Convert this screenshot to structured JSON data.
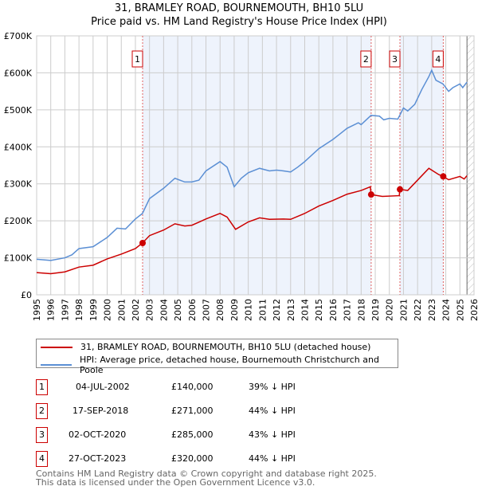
{
  "chart_data": {
    "type": "line",
    "title": "31, BRAMLEY ROAD, BOURNEMOUTH, BH10 5LU",
    "subtitle": "Price paid vs. HM Land Registry's House Price Index (HPI)",
    "xlim": [
      1995,
      2026
    ],
    "ylim": [
      0,
      700000
    ],
    "y_ticks": [
      {
        "v": 0,
        "label": "£0"
      },
      {
        "v": 100000,
        "label": "£100K"
      },
      {
        "v": 200000,
        "label": "£200K"
      },
      {
        "v": 300000,
        "label": "£300K"
      },
      {
        "v": 400000,
        "label": "£400K"
      },
      {
        "v": 500000,
        "label": "£500K"
      },
      {
        "v": 600000,
        "label": "£600K"
      },
      {
        "v": 700000,
        "label": "£700K"
      }
    ],
    "x_ticks": [
      "1995",
      "1996",
      "1997",
      "1998",
      "1999",
      "2000",
      "2001",
      "2002",
      "2003",
      "2004",
      "2005",
      "2006",
      "2007",
      "2008",
      "2009",
      "2010",
      "2011",
      "2012",
      "2013",
      "2014",
      "2015",
      "2016",
      "2017",
      "2018",
      "2019",
      "2020",
      "2021",
      "2022",
      "2023",
      "2024",
      "2025",
      "2026"
    ],
    "series": [
      {
        "name": "31, BRAMLEY ROAD, BOURNEMOUTH, BH10 5LU (detached house)",
        "color": "#cc0000",
        "points": [
          [
            1995,
            60
          ],
          [
            1996,
            57
          ],
          [
            1997,
            62
          ],
          [
            1998,
            75
          ],
          [
            1999,
            80
          ],
          [
            2000,
            97
          ],
          [
            2001,
            110
          ],
          [
            2002,
            125
          ],
          [
            2002.5,
            140
          ],
          [
            2003,
            160
          ],
          [
            2004,
            175
          ],
          [
            2004.8,
            192
          ],
          [
            2005.5,
            186
          ],
          [
            2006,
            188
          ],
          [
            2007,
            205
          ],
          [
            2008,
            220
          ],
          [
            2008.5,
            210
          ],
          [
            2009.1,
            177
          ],
          [
            2010,
            197
          ],
          [
            2010.8,
            208
          ],
          [
            2011.5,
            204
          ],
          [
            2012.5,
            205
          ],
          [
            2013,
            204
          ],
          [
            2014,
            220
          ],
          [
            2015,
            240
          ],
          [
            2016,
            255
          ],
          [
            2017,
            272
          ],
          [
            2018,
            282
          ],
          [
            2018.65,
            292
          ],
          [
            2018.71,
            271
          ],
          [
            2019.5,
            266
          ],
          [
            2020.7,
            268
          ],
          [
            2020.75,
            285
          ],
          [
            2021.3,
            282
          ],
          [
            2022,
            310
          ],
          [
            2022.8,
            342
          ],
          [
            2023.5,
            325
          ],
          [
            2023.82,
            320
          ],
          [
            2024.2,
            311
          ],
          [
            2025,
            320
          ],
          [
            2025.3,
            313
          ],
          [
            2025.5,
            322
          ]
        ]
      },
      {
        "name": "HPI: Average price, detached house, Bournemouth Christchurch and Poole",
        "color": "#5b8fd4",
        "points": [
          [
            1995,
            96
          ],
          [
            1996,
            93
          ],
          [
            1997,
            100
          ],
          [
            1997.5,
            108
          ],
          [
            1998,
            125
          ],
          [
            1999,
            130
          ],
          [
            2000,
            155
          ],
          [
            2000.7,
            180
          ],
          [
            2001.3,
            178
          ],
          [
            2002,
            205
          ],
          [
            2002.5,
            220
          ],
          [
            2003,
            260
          ],
          [
            2004,
            288
          ],
          [
            2004.8,
            315
          ],
          [
            2005.5,
            305
          ],
          [
            2006,
            305
          ],
          [
            2006.5,
            310
          ],
          [
            2007,
            335
          ],
          [
            2008,
            360
          ],
          [
            2008.5,
            345
          ],
          [
            2009,
            292
          ],
          [
            2009.5,
            315
          ],
          [
            2010,
            330
          ],
          [
            2010.8,
            342
          ],
          [
            2011.5,
            335
          ],
          [
            2012,
            337
          ],
          [
            2012.5,
            335
          ],
          [
            2013,
            332
          ],
          [
            2013.5,
            345
          ],
          [
            2014,
            360
          ],
          [
            2015,
            395
          ],
          [
            2016,
            420
          ],
          [
            2016.5,
            435
          ],
          [
            2017,
            450
          ],
          [
            2017.8,
            465
          ],
          [
            2018,
            460
          ],
          [
            2018.7,
            485
          ],
          [
            2019.3,
            483
          ],
          [
            2019.6,
            473
          ],
          [
            2020,
            477
          ],
          [
            2020.6,
            475
          ],
          [
            2021,
            505
          ],
          [
            2021.3,
            497
          ],
          [
            2021.8,
            515
          ],
          [
            2022.3,
            555
          ],
          [
            2022.8,
            590
          ],
          [
            2023,
            607
          ],
          [
            2023.3,
            580
          ],
          [
            2023.8,
            570
          ],
          [
            2024.2,
            550
          ],
          [
            2024.5,
            560
          ],
          [
            2025,
            570
          ],
          [
            2025.2,
            560
          ],
          [
            2025.5,
            575
          ]
        ]
      }
    ],
    "y_units": 1000,
    "sales": [
      {
        "label": "1",
        "x": 2002.51,
        "y": 140000
      },
      {
        "label": "2",
        "x": 2018.71,
        "y": 271000
      },
      {
        "label": "3",
        "x": 2020.75,
        "y": 285000
      },
      {
        "label": "4",
        "x": 2023.82,
        "y": 320000
      }
    ],
    "shaded_ranges": [
      [
        2002.51,
        2018.71
      ],
      [
        2020.75,
        2023.82
      ]
    ],
    "forecast_hatch_from": 2025.5
  },
  "legend": {
    "items": [
      "31, BRAMLEY ROAD, BOURNEMOUTH, BH10 5LU (detached house)",
      "HPI: Average price, detached house, Bournemouth Christchurch and Poole"
    ]
  },
  "table": [
    {
      "num": "1",
      "date": "04-JUL-2002",
      "price": "£140,000",
      "hpi": "39% ↓ HPI"
    },
    {
      "num": "2",
      "date": "17-SEP-2018",
      "price": "£271,000",
      "hpi": "44% ↓ HPI"
    },
    {
      "num": "3",
      "date": "02-OCT-2020",
      "price": "£285,000",
      "hpi": "43% ↓ HPI"
    },
    {
      "num": "4",
      "date": "27-OCT-2023",
      "price": "£320,000",
      "hpi": "44% ↓ HPI"
    }
  ],
  "footer": {
    "line1": "Contains HM Land Registry data © Crown copyright and database right 2025.",
    "line2": "This data is licensed under the Open Government Licence v3.0."
  }
}
